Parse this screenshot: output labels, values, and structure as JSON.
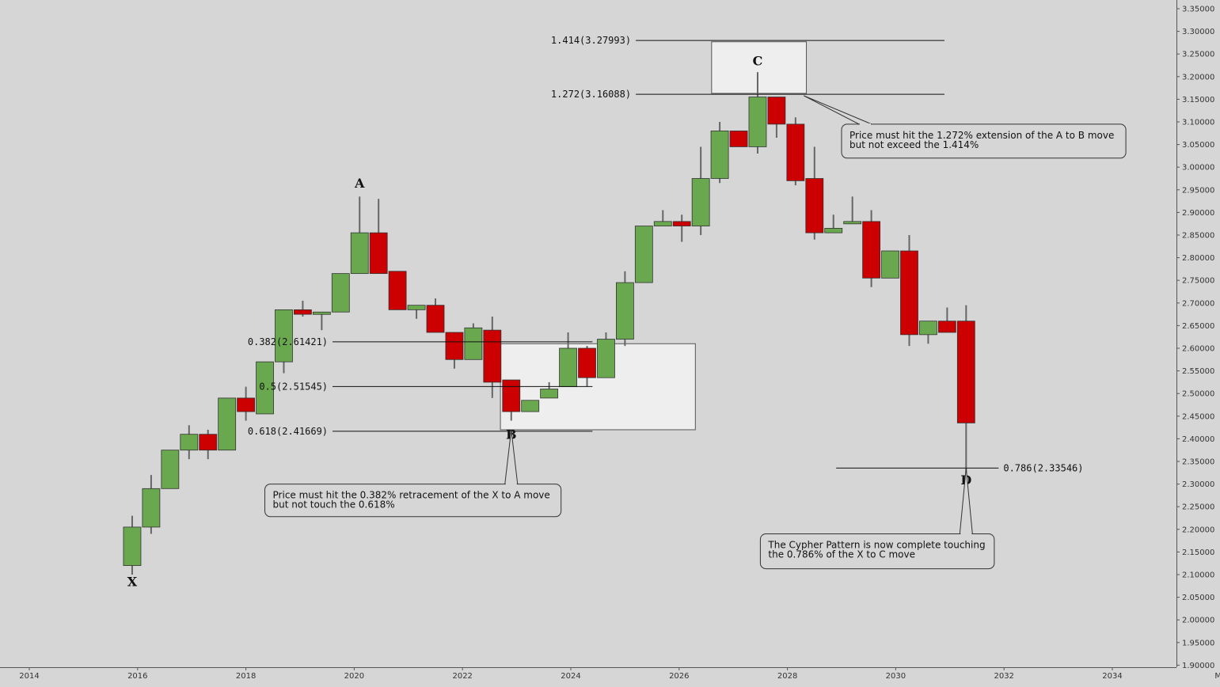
{
  "chart_data": {
    "type": "candlestick",
    "title": "",
    "xlabel": "",
    "ylabel": "",
    "ylim": [
      1.9,
      3.36
    ],
    "xlim": [
      2013.8,
      2035.2
    ],
    "x_ticks": [
      "2014",
      "2016",
      "2018",
      "2020",
      "2022",
      "2024",
      "2026",
      "2028",
      "2030",
      "2032",
      "2034",
      "Ma"
    ],
    "y_ticks": [
      "1.90000",
      "1.95000",
      "2.00000",
      "2.05000",
      "2.10000",
      "2.15000",
      "2.20000",
      "2.25000",
      "2.30000",
      "2.35000",
      "2.40000",
      "2.45000",
      "2.50000",
      "2.55000",
      "2.60000",
      "2.65000",
      "2.70000",
      "2.75000",
      "2.80000",
      "2.85000",
      "2.90000",
      "2.95000",
      "3.00000",
      "3.05000",
      "3.10000",
      "3.15000",
      "3.20000",
      "3.25000",
      "3.30000",
      "3.35000"
    ],
    "colors": {
      "up": "#6aa84f",
      "down": "#cc0000",
      "background": "#d6d6d6",
      "box": "#eeeeee"
    },
    "candles": [
      {
        "t": 2015.9,
        "o": 2.12,
        "h": 2.23,
        "l": 2.1,
        "c": 2.205
      },
      {
        "t": 2016.25,
        "o": 2.205,
        "h": 2.32,
        "l": 2.19,
        "c": 2.29
      },
      {
        "t": 2016.6,
        "o": 2.29,
        "h": 2.375,
        "l": 2.29,
        "c": 2.375
      },
      {
        "t": 2016.95,
        "o": 2.375,
        "h": 2.43,
        "l": 2.355,
        "c": 2.41
      },
      {
        "t": 2017.3,
        "o": 2.41,
        "h": 2.42,
        "l": 2.355,
        "c": 2.375
      },
      {
        "t": 2017.65,
        "o": 2.375,
        "h": 2.49,
        "l": 2.375,
        "c": 2.49
      },
      {
        "t": 2018.0,
        "o": 2.49,
        "h": 2.515,
        "l": 2.44,
        "c": 2.46
      },
      {
        "t": 2018.35,
        "o": 2.455,
        "h": 2.57,
        "l": 2.455,
        "c": 2.57
      },
      {
        "t": 2018.7,
        "o": 2.57,
        "h": 2.685,
        "l": 2.545,
        "c": 2.685
      },
      {
        "t": 2019.05,
        "o": 2.685,
        "h": 2.705,
        "l": 2.67,
        "c": 2.675
      },
      {
        "t": 2019.4,
        "o": 2.675,
        "h": 2.68,
        "l": 2.64,
        "c": 2.68
      },
      {
        "t": 2019.75,
        "o": 2.68,
        "h": 2.765,
        "l": 2.68,
        "c": 2.765
      },
      {
        "t": 2020.1,
        "o": 2.765,
        "h": 2.935,
        "l": 2.765,
        "c": 2.855
      },
      {
        "t": 2020.45,
        "o": 2.855,
        "h": 2.93,
        "l": 2.765,
        "c": 2.765
      },
      {
        "t": 2020.8,
        "o": 2.77,
        "h": 2.77,
        "l": 2.685,
        "c": 2.685
      },
      {
        "t": 2021.15,
        "o": 2.685,
        "h": 2.695,
        "l": 2.665,
        "c": 2.695
      },
      {
        "t": 2021.5,
        "o": 2.695,
        "h": 2.71,
        "l": 2.635,
        "c": 2.635
      },
      {
        "t": 2021.85,
        "o": 2.635,
        "h": 2.635,
        "l": 2.555,
        "c": 2.575
      },
      {
        "t": 2022.2,
        "o": 2.575,
        "h": 2.655,
        "l": 2.575,
        "c": 2.645
      },
      {
        "t": 2022.55,
        "o": 2.64,
        "h": 2.67,
        "l": 2.49,
        "c": 2.525
      },
      {
        "t": 2022.9,
        "o": 2.53,
        "h": 2.53,
        "l": 2.44,
        "c": 2.46
      },
      {
        "t": 2023.25,
        "o": 2.46,
        "h": 2.485,
        "l": 2.46,
        "c": 2.485
      },
      {
        "t": 2023.6,
        "o": 2.49,
        "h": 2.525,
        "l": 2.49,
        "c": 2.51
      },
      {
        "t": 2023.95,
        "o": 2.515,
        "h": 2.635,
        "l": 2.515,
        "c": 2.6
      },
      {
        "t": 2024.3,
        "o": 2.6,
        "h": 2.605,
        "l": 2.515,
        "c": 2.535
      },
      {
        "t": 2024.65,
        "o": 2.535,
        "h": 2.635,
        "l": 2.535,
        "c": 2.62
      },
      {
        "t": 2025.0,
        "o": 2.62,
        "h": 2.77,
        "l": 2.605,
        "c": 2.745
      },
      {
        "t": 2025.35,
        "o": 2.745,
        "h": 2.87,
        "l": 2.745,
        "c": 2.87
      },
      {
        "t": 2025.7,
        "o": 2.87,
        "h": 2.905,
        "l": 2.87,
        "c": 2.88
      },
      {
        "t": 2026.05,
        "o": 2.88,
        "h": 2.895,
        "l": 2.835,
        "c": 2.87
      },
      {
        "t": 2026.4,
        "o": 2.87,
        "h": 3.045,
        "l": 2.85,
        "c": 2.975
      },
      {
        "t": 2026.75,
        "o": 2.975,
        "h": 3.1,
        "l": 2.965,
        "c": 3.08
      },
      {
        "t": 2027.1,
        "o": 3.08,
        "h": 3.08,
        "l": 3.045,
        "c": 3.045
      },
      {
        "t": 2027.45,
        "o": 3.045,
        "h": 3.21,
        "l": 3.03,
        "c": 3.155
      },
      {
        "t": 2027.8,
        "o": 3.155,
        "h": 3.155,
        "l": 3.065,
        "c": 3.095
      },
      {
        "t": 2028.15,
        "o": 3.095,
        "h": 3.11,
        "l": 2.96,
        "c": 2.97
      },
      {
        "t": 2028.5,
        "o": 2.975,
        "h": 3.045,
        "l": 2.84,
        "c": 2.855
      },
      {
        "t": 2028.85,
        "o": 2.855,
        "h": 2.895,
        "l": 2.855,
        "c": 2.865
      },
      {
        "t": 2029.2,
        "o": 2.875,
        "h": 2.935,
        "l": 2.875,
        "c": 2.88
      },
      {
        "t": 2029.55,
        "o": 2.88,
        "h": 2.905,
        "l": 2.735,
        "c": 2.755
      },
      {
        "t": 2029.9,
        "o": 2.755,
        "h": 2.815,
        "l": 2.755,
        "c": 2.815
      },
      {
        "t": 2030.25,
        "o": 2.815,
        "h": 2.85,
        "l": 2.605,
        "c": 2.63
      },
      {
        "t": 2030.6,
        "o": 2.63,
        "h": 2.66,
        "l": 2.61,
        "c": 2.66
      },
      {
        "t": 2030.95,
        "o": 2.66,
        "h": 2.69,
        "l": 2.635,
        "c": 2.635
      },
      {
        "t": 2031.3,
        "o": 2.66,
        "h": 2.695,
        "l": 2.32,
        "c": 2.435
      }
    ],
    "fib_levels": [
      {
        "label": "1.414(3.27993)",
        "value": 3.27993,
        "x1": 2025.2,
        "x2": 2030.9,
        "label_side": "left"
      },
      {
        "label": "1.272(3.16088)",
        "value": 3.16088,
        "x1": 2025.2,
        "x2": 2030.9,
        "label_side": "left"
      },
      {
        "label": "0.382(2.61421)",
        "value": 2.61421,
        "x1": 2019.6,
        "x2": 2024.4,
        "label_side": "left"
      },
      {
        "label": "0.5(2.51545)",
        "value": 2.51545,
        "x1": 2019.6,
        "x2": 2024.4,
        "label_side": "left"
      },
      {
        "label": "0.618(2.41669)",
        "value": 2.41669,
        "x1": 2019.6,
        "x2": 2024.4,
        "label_side": "left"
      },
      {
        "label": "0.786(2.33546)",
        "value": 2.33546,
        "x1": 2028.9,
        "x2": 2031.9,
        "label_side": "right"
      }
    ],
    "zones": [
      {
        "x1": 2022.7,
        "x2": 2026.3,
        "y1": 2.42,
        "y2": 2.61
      },
      {
        "x1": 2026.6,
        "x2": 2028.35,
        "y1": 3.163,
        "y2": 3.277
      }
    ],
    "points": [
      {
        "label": "X",
        "t": 2015.9,
        "value": 2.085,
        "pos": "below"
      },
      {
        "label": "A",
        "t": 2020.1,
        "value": 2.955,
        "pos": "above"
      },
      {
        "label": "B",
        "t": 2022.9,
        "value": 2.41,
        "pos": "below"
      },
      {
        "label": "C",
        "t": 2027.45,
        "value": 3.225,
        "pos": "above"
      },
      {
        "label": "D",
        "t": 2031.3,
        "value": 2.31,
        "pos": "below"
      }
    ],
    "annotations": [
      {
        "lines": [
          "Price must hit the 1.272% extension of the A to B move",
          "but not exceed the 1.414%"
        ],
        "x1": 2029.0,
        "x2": 2034.25,
        "y_top": 3.095,
        "y_bottom": 3.02,
        "anchor": {
          "t": 2028.3,
          "value": 3.158
        }
      },
      {
        "lines": [
          "Price must hit the 0.382% retracement of the X to A move",
          "but not touch the 0.618%"
        ],
        "x1": 2018.35,
        "x2": 2023.82,
        "y_top": 2.3,
        "y_bottom": 2.228,
        "anchor": {
          "t": 2022.9,
          "value": 2.42
        }
      },
      {
        "lines": [
          "The Cypher Pattern is now complete touching",
          "the 0.786% of the X to C move"
        ],
        "x1": 2027.5,
        "x2": 2031.82,
        "y_top": 2.19,
        "y_bottom": 2.113,
        "anchor": {
          "t": 2031.3,
          "value": 2.335
        }
      }
    ]
  }
}
